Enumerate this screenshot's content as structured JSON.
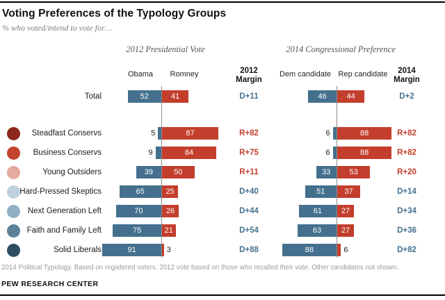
{
  "chart_data": {
    "type": "bar",
    "subtype": "horizontal diverging (back-to-back) bars, two panels with margin columns",
    "title": "Voting Preferences of the Typology Groups",
    "subtitle": "% who voted/intend to vote for…",
    "value_unit": "percent",
    "xlim_each_side": [
      0,
      100
    ],
    "legend": "none; values labeled on bars",
    "panels": [
      {
        "title": "2012 Presidential Vote",
        "dem_column": "Obama",
        "rep_column": "Romney",
        "margin_header_line1": "2012",
        "margin_header_line2": "Margin"
      },
      {
        "title": "2014 Congressional Preference",
        "dem_column": "Dem candidate",
        "rep_column": "Rep candidate",
        "margin_header_line1": "2014",
        "margin_header_line2": "Margin"
      }
    ],
    "categories": [
      "Total",
      "Steadfast Conservs",
      "Business Conservs",
      "Young Outsiders",
      "Hard-Pressed Skeptics",
      "Next Generation Left",
      "Faith and Family Left",
      "Solid Liberals"
    ],
    "rows": [
      {
        "label": "Total",
        "dot_color": null,
        "vote_2012": {
          "dem": 52,
          "rep": 41,
          "margin": "D+11"
        },
        "pref_2014": {
          "dem": 46,
          "rep": 44,
          "margin": "D+2"
        }
      },
      {
        "label": "Steadfast Conservs",
        "dot_color": "#8C291B",
        "vote_2012": {
          "dem": 5,
          "rep": 87,
          "margin": "R+82"
        },
        "pref_2014": {
          "dem": 6,
          "rep": 88,
          "margin": "R+82"
        }
      },
      {
        "label": "Business Conservs",
        "dot_color": "#C2432E",
        "vote_2012": {
          "dem": 9,
          "rep": 84,
          "margin": "R+75"
        },
        "pref_2014": {
          "dem": 6,
          "rep": 88,
          "margin": "R+82"
        }
      },
      {
        "label": "Young Outsiders",
        "dot_color": "#E6A99E",
        "vote_2012": {
          "dem": 39,
          "rep": 50,
          "margin": "R+11"
        },
        "pref_2014": {
          "dem": 33,
          "rep": 53,
          "margin": "R+20"
        }
      },
      {
        "label": "Hard-Pressed Skeptics",
        "dot_color": "#BFD1DE",
        "vote_2012": {
          "dem": 65,
          "rep": 25,
          "margin": "D+40"
        },
        "pref_2014": {
          "dem": 51,
          "rep": 37,
          "margin": "D+14"
        }
      },
      {
        "label": "Next Generation Left",
        "dot_color": "#91B0C4",
        "vote_2012": {
          "dem": 70,
          "rep": 26,
          "margin": "D+44"
        },
        "pref_2014": {
          "dem": 61,
          "rep": 27,
          "margin": "D+34"
        }
      },
      {
        "label": "Faith and Family Left",
        "dot_color": "#5E8099",
        "vote_2012": {
          "dem": 75,
          "rep": 21,
          "margin": "D+54"
        },
        "pref_2014": {
          "dem": 63,
          "rep": 27,
          "margin": "D+36"
        }
      },
      {
        "label": "Solid Liberals",
        "dot_color": "#2E4D60",
        "vote_2012": {
          "dem": 91,
          "rep": 3,
          "margin": "D+88"
        },
        "pref_2014": {
          "dem": 88,
          "rep": 6,
          "margin": "D+82"
        }
      }
    ],
    "colors": {
      "dem_bar": "#44708E",
      "rep_bar": "#C33E2C",
      "dem_text": "#44708E",
      "rep_text": "#C33E2C",
      "axis_line": "#8C8C8C"
    }
  },
  "footer": {
    "note": "2014 Political Typology. Based on registered voters. 2012 vote based on those who recalled their vote. Other candidates not shown.",
    "source": "PEW RESEARCH CENTER"
  }
}
